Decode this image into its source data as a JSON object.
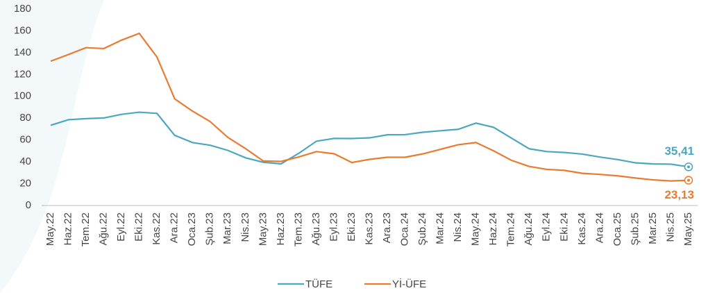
{
  "chart_data": {
    "type": "line",
    "categories": [
      "May.22",
      "Haz.22",
      "Tem.22",
      "Ağu.22",
      "Eyl.22",
      "Eki.22",
      "Kas.22",
      "Ara.22",
      "Oca.23",
      "Şub.23",
      "Mar.23",
      "Nis.23",
      "May.23",
      "Haz.23",
      "Tem.23",
      "Ağu.23",
      "Eyl.23",
      "Eki.23",
      "Kas.23",
      "Ara.23",
      "Oca.24",
      "Şub.24",
      "Mar.24",
      "Nis.24",
      "May.24",
      "Haz.24",
      "Tem.24",
      "Ağu.24",
      "Eyl.24",
      "Eki.24",
      "Kas.24",
      "Ara.24",
      "Oca.25",
      "Şub.25",
      "Mar.25",
      "Nis.25",
      "May.25"
    ],
    "series": [
      {
        "name": "TÜFE",
        "color": "#4ba6bf",
        "values": [
          73.5,
          78.6,
          79.6,
          80.2,
          83.5,
          85.5,
          84.4,
          64.3,
          57.7,
          55.2,
          50.5,
          43.7,
          39.6,
          38.2,
          47.8,
          58.9,
          61.5,
          61.4,
          62.0,
          64.8,
          64.9,
          67.1,
          68.5,
          69.8,
          75.5,
          71.6,
          61.8,
          52.0,
          49.4,
          48.6,
          47.1,
          44.4,
          42.1,
          39.1,
          38.1,
          37.9,
          35.41
        ],
        "value_labels": [
          null,
          null,
          null,
          null,
          null,
          null,
          null,
          null,
          null,
          null,
          null,
          null,
          null,
          null,
          null,
          null,
          null,
          null,
          null,
          null,
          null,
          null,
          null,
          null,
          null,
          null,
          null,
          null,
          null,
          null,
          null,
          null,
          null,
          null,
          null,
          null,
          "35,41"
        ]
      },
      {
        "name": "Yİ-ÜFE",
        "color": "#ea7a2e",
        "values": [
          132.2,
          138.3,
          144.6,
          143.8,
          151.5,
          157.7,
          136.0,
          97.7,
          86.5,
          76.9,
          62.4,
          52.1,
          40.8,
          40.4,
          44.5,
          49.4,
          47.4,
          39.4,
          42.3,
          44.2,
          44.2,
          47.3,
          51.5,
          55.7,
          57.7,
          50.1,
          41.4,
          35.8,
          33.1,
          32.2,
          29.5,
          28.5,
          27.2,
          25.2,
          23.5,
          22.5,
          23.13
        ],
        "value_labels": [
          null,
          null,
          null,
          null,
          null,
          null,
          null,
          null,
          null,
          null,
          null,
          null,
          null,
          null,
          null,
          null,
          null,
          null,
          null,
          null,
          null,
          null,
          null,
          null,
          null,
          null,
          null,
          null,
          null,
          null,
          null,
          null,
          null,
          null,
          null,
          null,
          "23,13"
        ]
      }
    ],
    "ylim": [
      0,
      180
    ],
    "yticks": [
      0,
      20,
      40,
      60,
      80,
      100,
      120,
      140,
      160,
      180
    ],
    "legend": "bottom"
  }
}
